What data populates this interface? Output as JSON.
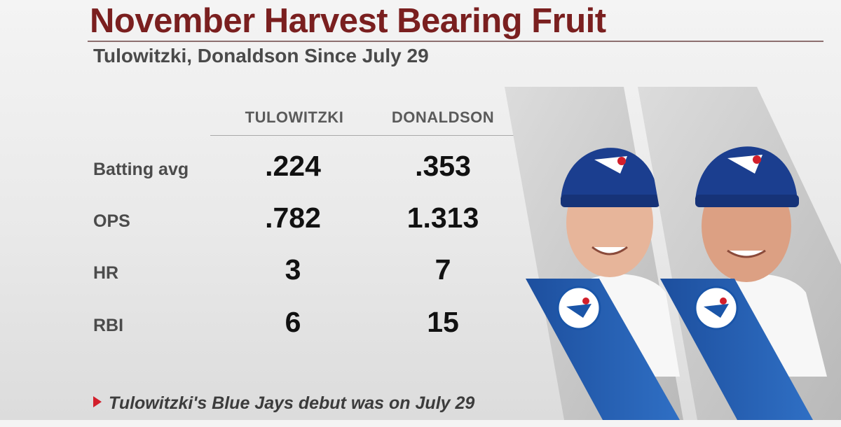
{
  "header": {
    "title": "November Harvest Bearing Fruit",
    "subtitle": "Tulowitzki, Donaldson Since July 29"
  },
  "table": {
    "columns": [
      "TULOWITZKI",
      "DONALDSON"
    ],
    "rows": [
      {
        "label": "Batting avg",
        "values": [
          ".224",
          ".353"
        ]
      },
      {
        "label": "OPS",
        "values": [
          ".782",
          "1.313"
        ]
      },
      {
        "label": "HR",
        "values": [
          "3",
          "7"
        ]
      },
      {
        "label": "RBI",
        "values": [
          "6",
          "15"
        ]
      }
    ]
  },
  "footnote": {
    "text": "Tulowitzki's Blue Jays debut was on July 29",
    "icon": "triangle-arrow-icon"
  },
  "players": [
    {
      "name_icon": "player-photo-tulowitzki",
      "logo": "blue-jays-logo-icon"
    },
    {
      "name_icon": "player-photo-donaldson",
      "logo": "blue-jays-logo-icon"
    }
  ],
  "colors": {
    "title": "#7a1f1f",
    "accent_red": "#d21f2b",
    "jays_blue": "#1a55a8",
    "cap_blue": "#1b3e8f"
  }
}
